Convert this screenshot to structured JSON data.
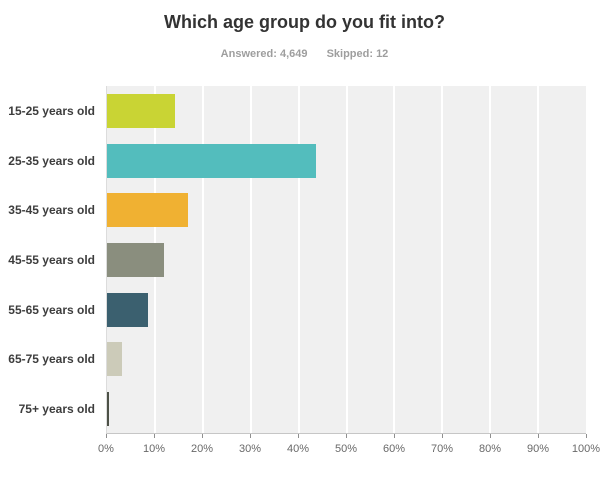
{
  "header": {
    "title": "Which age group do you fit into?",
    "answered_label": "Answered: 4,649",
    "skipped_label": "Skipped: 12"
  },
  "chart_data": {
    "type": "bar",
    "orientation": "horizontal",
    "title": "Which age group do you fit into?",
    "categories": [
      "15-25 years old",
      "25-35 years old",
      "35-45 years old",
      "45-55 years old",
      "55-65 years old",
      "65-75 years old",
      "75+ years old"
    ],
    "values": [
      14.1,
      43.6,
      17.0,
      11.9,
      8.5,
      3.2,
      0.4
    ],
    "bar_colors": [
      "#c9d434",
      "#53bdbd",
      "#f0b132",
      "#8a8e7e",
      "#3b606f",
      "#cccbb9",
      "#4d5147"
    ],
    "x_tick_labels": [
      "0%",
      "10%",
      "20%",
      "30%",
      "40%",
      "50%",
      "60%",
      "70%",
      "80%",
      "90%",
      "100%"
    ],
    "xlim": [
      0,
      100
    ],
    "grid": true,
    "plot_background": "#f0f0f0",
    "gridline_color": "#ffffff",
    "legend": "none"
  }
}
